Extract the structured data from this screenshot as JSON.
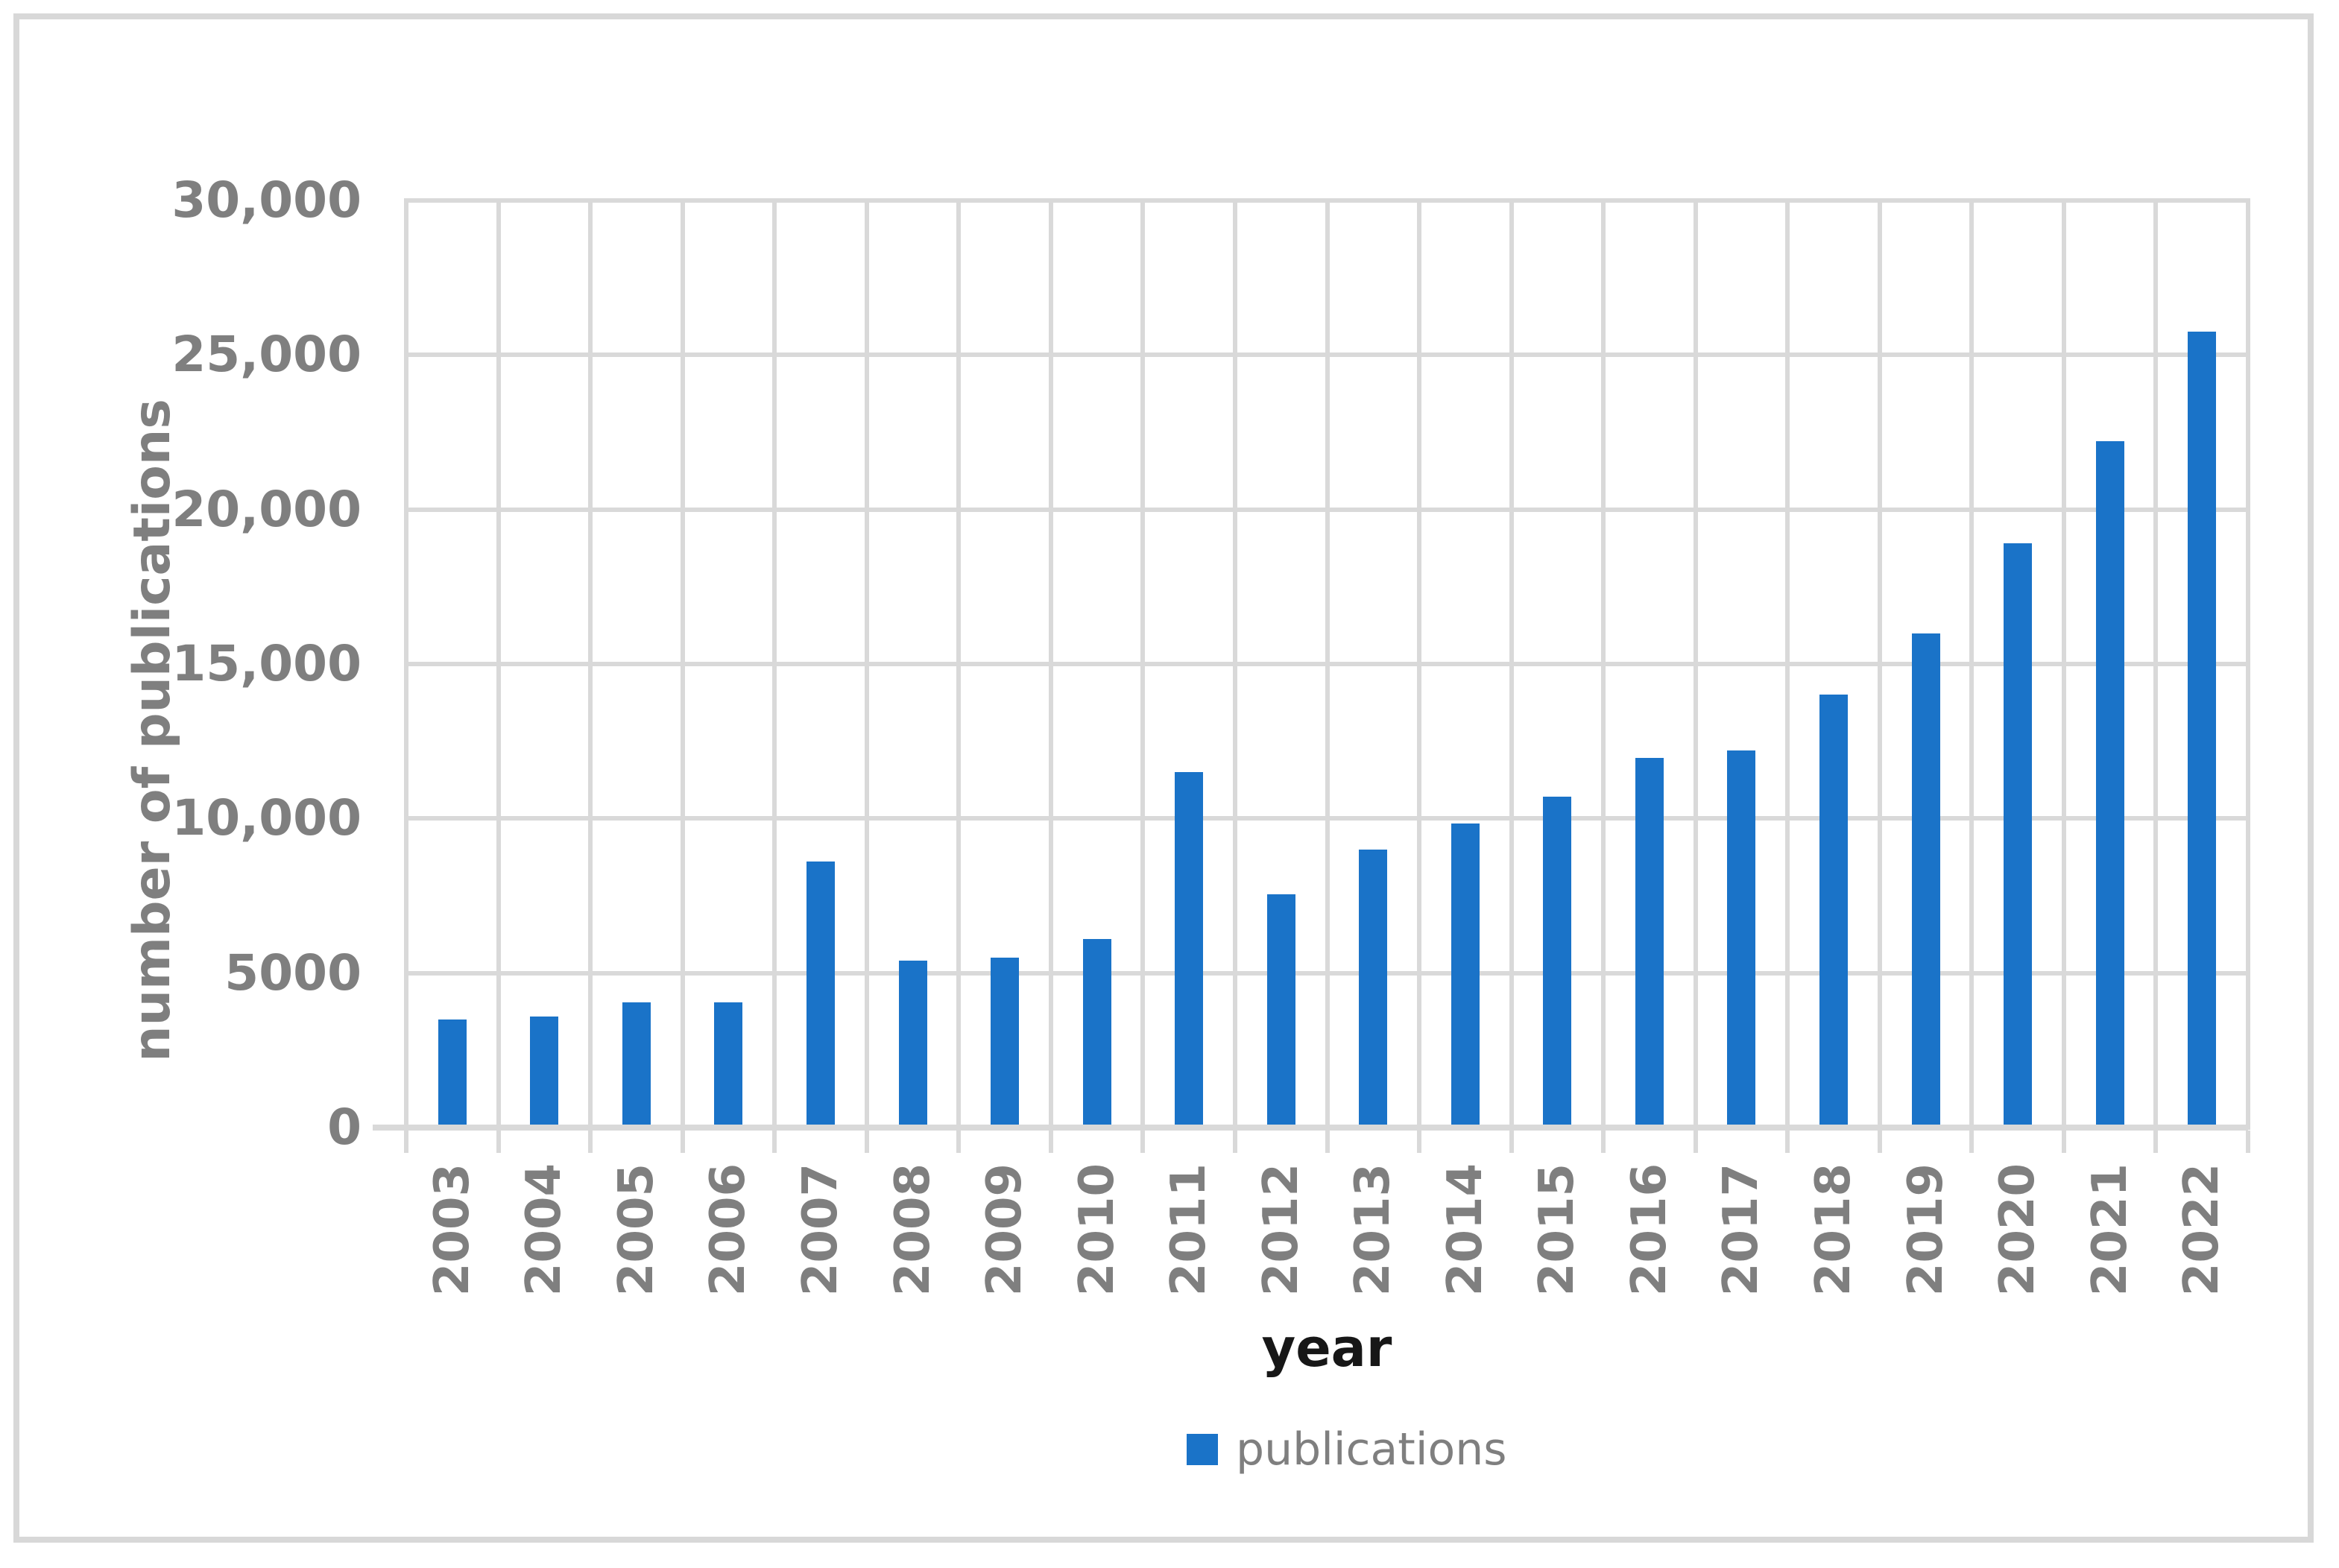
{
  "figure": {
    "background": "#ffffff",
    "border_color": "#d8d8d8"
  },
  "colors": {
    "bar": "#1a73c8",
    "gridline": "#d9d9d9",
    "axis_text": "#7f7f7f",
    "x_title_text": "#171717"
  },
  "legend": {
    "swatch_icon": "blue-square-swatch",
    "label": "publications"
  },
  "chart_data": {
    "type": "bar",
    "title": "",
    "xlabel": "year",
    "ylabel": "number of publications",
    "categories": [
      "2003",
      "2004",
      "2005",
      "2006",
      "2007",
      "2008",
      "2009",
      "2010",
      "2011",
      "2012",
      "2013",
      "2014",
      "2015",
      "2016",
      "2017",
      "2018",
      "2019",
      "2020",
      "2021",
      "2022"
    ],
    "values": [
      3500,
      3600,
      4050,
      4050,
      8600,
      5400,
      5500,
      6100,
      11500,
      7550,
      9000,
      9850,
      10700,
      11950,
      12200,
      14000,
      16000,
      18900,
      22200,
      25750
    ],
    "series_name": "publications",
    "ylim": [
      0,
      30000
    ],
    "yticks": [
      {
        "value": 30000,
        "label": "30,000"
      },
      {
        "value": 25000,
        "label": "25,000"
      },
      {
        "value": 20000,
        "label": "20,000"
      },
      {
        "value": 15000,
        "label": "15,000"
      },
      {
        "value": 10000,
        "label": "10,000"
      },
      {
        "value": 5000,
        "label": "5000"
      },
      {
        "value": 0,
        "label": "0"
      }
    ],
    "grid": "both",
    "legend_position": "bottom-center",
    "bar_color": "#1a73c8"
  }
}
